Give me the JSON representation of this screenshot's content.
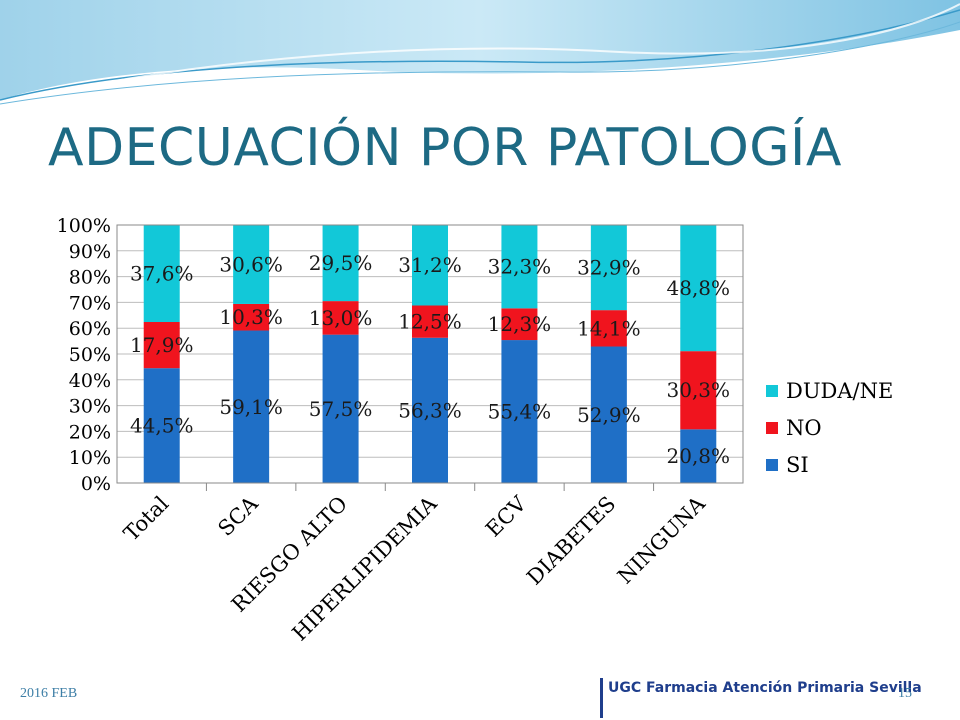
{
  "title": "ADECUACIÓN POR PATOLOGÍA",
  "footer": {
    "date": "2016 FEB",
    "organization": "UGC Farmacia Atención Primaria Sevilla",
    "page_number": "15"
  },
  "colors": {
    "title": "#1d6a84",
    "si": "#1f6fc6",
    "no": "#f0141e",
    "duda": "#12c8d8",
    "footer_text": "#3d7ea6",
    "footer_org": "#1f3e8c"
  },
  "chart_data": {
    "type": "bar",
    "stacked": true,
    "percent": true,
    "categories": [
      "Total",
      "SCA",
      "RIESGO ALTO",
      "HIPERLIPIDEMIA",
      "ECV",
      "DIABETES",
      "NINGUNA"
    ],
    "series": [
      {
        "name": "SI",
        "color": "#1f6fc6",
        "values": [
          44.5,
          59.1,
          57.5,
          56.3,
          55.4,
          52.9,
          20.8
        ],
        "labels": [
          "44,5%",
          "59,1%",
          "57,5%",
          "56,3%",
          "55,4%",
          "52,9%",
          "20,8%"
        ]
      },
      {
        "name": "NO",
        "color": "#f0141e",
        "values": [
          17.9,
          10.3,
          13.0,
          12.5,
          12.3,
          14.1,
          30.3
        ],
        "labels": [
          "17,9%",
          "10,3%",
          "13,0%",
          "12,5%",
          "12,3%",
          "14,1%",
          "30,3%"
        ]
      },
      {
        "name": "DUDA/NE",
        "color": "#12c8d8",
        "values": [
          37.6,
          30.6,
          29.5,
          31.2,
          32.3,
          32.9,
          48.8
        ],
        "labels": [
          "37,6%",
          "30,6%",
          "29,5%",
          "31,2%",
          "32,3%",
          "32,9%",
          "48,8%"
        ]
      }
    ],
    "yticks": [
      "0%",
      "10%",
      "20%",
      "30%",
      "40%",
      "50%",
      "60%",
      "70%",
      "80%",
      "90%",
      "100%"
    ],
    "ylim": [
      0,
      100
    ],
    "grid": true,
    "legend_position": "right",
    "legend": [
      "DUDA/NE",
      "NO",
      "SI"
    ]
  }
}
